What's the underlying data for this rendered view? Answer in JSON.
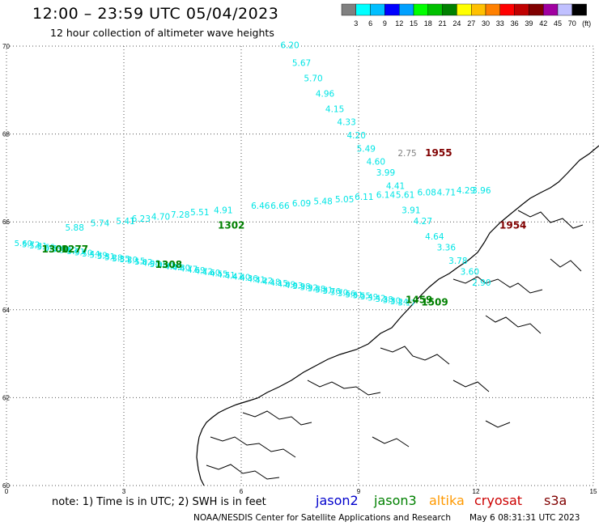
{
  "header": {
    "title": "12:00 – 23:59 UTC 05/04/2023",
    "subtitle": "12 hour collection of altimeter wave heights"
  },
  "legend": {
    "colors": [
      "#808080",
      "#00ffff",
      "#00bfff",
      "#0000ff",
      "#00a0ff",
      "#00ff00",
      "#00c000",
      "#008000",
      "#ffff00",
      "#ffc000",
      "#ff8000",
      "#ff0000",
      "#c00000",
      "#800000",
      "#a000a0",
      "#c0c0ff",
      "#000000"
    ],
    "labels": [
      "3",
      "6",
      "9",
      "12",
      "15",
      "18",
      "21",
      "24",
      "27",
      "30",
      "33",
      "36",
      "39",
      "42",
      "45",
      "70",
      "(ft)"
    ]
  },
  "axes": {
    "lat_ticks": [
      "70",
      "68",
      "66",
      "64",
      "62",
      "60"
    ],
    "lon_ticks": [
      "0",
      "3",
      "6",
      "9",
      "12",
      "15"
    ],
    "lat_range": [
      60,
      70
    ],
    "lon_range": [
      0,
      15
    ],
    "grid": "dotted"
  },
  "tracks": [
    {
      "name": "cryosat",
      "color": "#00e5e5",
      "labels": [
        {
          "lon": 7.0,
          "lat": 69.95,
          "text": "6.20"
        },
        {
          "lon": 7.3,
          "lat": 69.55,
          "text": "5.67"
        },
        {
          "lon": 7.6,
          "lat": 69.2,
          "text": "5.70"
        },
        {
          "lon": 7.9,
          "lat": 68.85,
          "text": "4.96"
        },
        {
          "lon": 8.15,
          "lat": 68.5,
          "text": "4.15"
        },
        {
          "lon": 8.45,
          "lat": 68.2,
          "text": "4.33"
        },
        {
          "lon": 8.7,
          "lat": 67.9,
          "text": "4.20"
        },
        {
          "lon": 8.95,
          "lat": 67.6,
          "text": "5.49"
        },
        {
          "lon": 9.2,
          "lat": 67.3,
          "text": "4.60"
        },
        {
          "lon": 9.45,
          "lat": 67.05,
          "text": "3.99"
        },
        {
          "lon": 9.7,
          "lat": 66.75,
          "text": "4.41"
        },
        {
          "lon": 10.1,
          "lat": 66.2,
          "text": "3.91"
        },
        {
          "lon": 10.4,
          "lat": 65.95,
          "text": "4.27"
        },
        {
          "lon": 10.7,
          "lat": 65.6,
          "text": "4.64"
        },
        {
          "lon": 11.0,
          "lat": 65.35,
          "text": "3.36"
        },
        {
          "lon": 11.3,
          "lat": 65.05,
          "text": "3.78"
        },
        {
          "lon": 11.6,
          "lat": 64.8,
          "text": "3.60"
        },
        {
          "lon": 11.9,
          "lat": 64.55,
          "text": "2.90"
        }
      ]
    },
    {
      "name": "jason3",
      "color": "#00e5e5",
      "labels": [
        {
          "lon": 1.5,
          "lat": 65.8,
          "text": "5.88"
        },
        {
          "lon": 2.15,
          "lat": 65.9,
          "text": "5.74"
        },
        {
          "lon": 2.8,
          "lat": 65.95,
          "text": "5.41"
        },
        {
          "lon": 3.2,
          "lat": 66.0,
          "text": "6.23"
        },
        {
          "lon": 3.7,
          "lat": 66.05,
          "text": "4.70"
        },
        {
          "lon": 4.2,
          "lat": 66.1,
          "text": "7.28"
        },
        {
          "lon": 4.7,
          "lat": 66.15,
          "text": "5.51"
        },
        {
          "lon": 5.3,
          "lat": 66.2,
          "text": "4.91"
        },
        {
          "lon": 6.25,
          "lat": 66.3,
          "text": "6.46"
        },
        {
          "lon": 6.75,
          "lat": 66.3,
          "text": "6.66"
        },
        {
          "lon": 7.3,
          "lat": 66.35,
          "text": "6.09"
        },
        {
          "lon": 7.85,
          "lat": 66.4,
          "text": "5.48"
        },
        {
          "lon": 8.4,
          "lat": 66.45,
          "text": "5.05"
        },
        {
          "lon": 8.9,
          "lat": 66.5,
          "text": "6.11"
        },
        {
          "lon": 9.45,
          "lat": 66.55,
          "text": "6.14"
        },
        {
          "lon": 9.95,
          "lat": 66.55,
          "text": "5.61"
        },
        {
          "lon": 10.5,
          "lat": 66.6,
          "text": "6.08"
        },
        {
          "lon": 11.0,
          "lat": 66.6,
          "text": "4.71"
        },
        {
          "lon": 11.5,
          "lat": 66.65,
          "text": "4.29"
        },
        {
          "lon": 11.9,
          "lat": 66.65,
          "text": "3.96"
        }
      ]
    }
  ],
  "grey_labels": [
    {
      "lon": 10.0,
      "lat": 67.5,
      "text": "2.75"
    }
  ],
  "time_labels": [
    {
      "lon": 10.7,
      "lat": 67.5,
      "text": "1955",
      "color": "#800000"
    },
    {
      "lon": 12.6,
      "lat": 65.85,
      "text": "1954",
      "color": "#800000"
    },
    {
      "lon": 5.4,
      "lat": 65.85,
      "text": "1302",
      "color": "#008000"
    },
    {
      "lon": 0.9,
      "lat": 65.3,
      "text": "1300",
      "color": "#008000"
    },
    {
      "lon": 1.4,
      "lat": 65.3,
      "text": "1277",
      "color": "#008000"
    },
    {
      "lon": 3.8,
      "lat": 64.95,
      "text": "1308",
      "color": "#008000"
    },
    {
      "lon": 10.2,
      "lat": 64.15,
      "text": "1459",
      "color": "#008000"
    },
    {
      "lon": 10.6,
      "lat": 64.1,
      "text": "1509",
      "color": "#008000"
    }
  ],
  "dense_track": {
    "color": "#00e5e5",
    "start": {
      "lon": 0.2,
      "lat": 65.45
    },
    "end": {
      "lon": 10.0,
      "lat": 64.1
    },
    "count": 52,
    "values": [
      "5.60",
      "5.72",
      "5.81",
      "5.66",
      "5.59",
      "5.48",
      "5.52",
      "5.61",
      "5.70",
      "5.44",
      "5.39",
      "5.31",
      "5.28",
      "5.35",
      "5.20",
      "5.15",
      "5.02",
      "4.98",
      "5.06",
      "4.91",
      "4.85",
      "4.80",
      "4.77",
      "4.69",
      "4.72",
      "4.60",
      "4.55",
      "4.51",
      "4.47",
      "4.40",
      "4.36",
      "4.31",
      "4.22",
      "4.18",
      "4.15",
      "4.09",
      "4.03",
      "3.98",
      "3.92",
      "3.88",
      "3.81",
      "3.76",
      "3.70",
      "3.66",
      "3.61",
      "3.55",
      "3.49",
      "3.42",
      "3.38",
      "3.30",
      "3.24",
      "3.17"
    ]
  },
  "footer": {
    "note": "note:  1) Time is in UTC;  2) SWH is in feet",
    "missions": [
      {
        "name": "jason2",
        "color": "#0000cc"
      },
      {
        "name": "jason3",
        "color": "#008000"
      },
      {
        "name": "altika",
        "color": "#ff9900"
      },
      {
        "name": "cryosat",
        "color": "#cc0000"
      },
      {
        "name": "s3a",
        "color": "#800000"
      }
    ],
    "credit": "NOAA/NESDIS Center for Satellite Applications and Research",
    "timestamp": "May  6 08:31:31 UTC 2023"
  }
}
